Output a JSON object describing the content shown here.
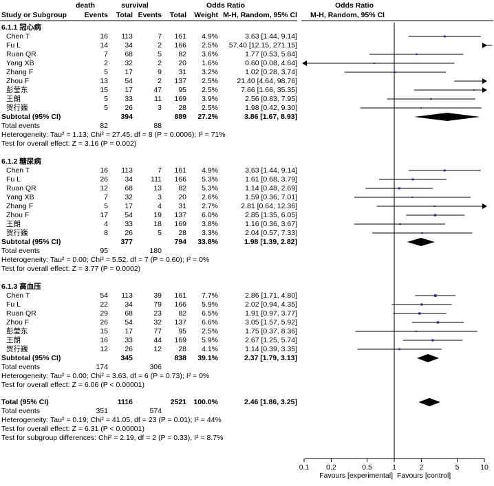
{
  "header": {
    "study_label": "Study or Subgroup",
    "group1": "death",
    "group2": "survival",
    "events": "Events",
    "total": "Total",
    "weight": "Weight",
    "or_title": "Odds Ratio",
    "or_method": "M-H, Random, 95% CI"
  },
  "chart_data": {
    "type": "forest",
    "x_scale": "log",
    "xlim": [
      0.1,
      10
    ],
    "x_ticks": [
      "0.1",
      "0.2",
      "0.5",
      "1",
      "2",
      "5",
      "10"
    ],
    "x_tick_values": [
      0.1,
      0.2,
      0.5,
      1,
      2,
      5,
      10
    ],
    "favours_left": "Favours [experimental]",
    "favours_right": "Favours [control]",
    "subgroups": [
      {
        "title": "6.1.1 冠心病",
        "studies": [
          {
            "name": "Chen T",
            "e1": "16",
            "t1": "113",
            "e2": "7",
            "t2": "161",
            "weight": "4.9%",
            "ci": "3.63 [1.44, 9.14]",
            "or": 3.63,
            "lo": 1.44,
            "hi": 9.14
          },
          {
            "name": "Fu L",
            "e1": "14",
            "t1": "34",
            "e2": "2",
            "t2": "166",
            "weight": "2.5%",
            "ci": "57.40 [12.15, 271.15]",
            "or": 57.4,
            "lo": 12.15,
            "hi": 271.15
          },
          {
            "name": "Ruan QR",
            "e1": "7",
            "t1": "68",
            "e2": "5",
            "t2": "82",
            "weight": "3.6%",
            "ci": "1.77 [0.53, 5.84]",
            "or": 1.77,
            "lo": 0.53,
            "hi": 5.84
          },
          {
            "name": "Yang XB",
            "e1": "2",
            "t1": "32",
            "e2": "2",
            "t2": "20",
            "weight": "1.6%",
            "ci": "0.60 [0.08, 4.64]",
            "or": 0.6,
            "lo": 0.08,
            "hi": 4.64
          },
          {
            "name": "Zhang F",
            "e1": "5",
            "t1": "17",
            "e2": "9",
            "t2": "31",
            "weight": "3.2%",
            "ci": "1.02 [0.28, 3.74]",
            "or": 1.02,
            "lo": 0.28,
            "hi": 3.74
          },
          {
            "name": "Zhou F",
            "e1": "13",
            "t1": "54",
            "e2": "2",
            "t2": "137",
            "weight": "2.5%",
            "ci": "21.40 [4.64, 98.76]",
            "or": 21.4,
            "lo": 4.64,
            "hi": 98.76
          },
          {
            "name": "彭莹东",
            "e1": "15",
            "t1": "17",
            "e2": "47",
            "t2": "95",
            "weight": "2.5%",
            "ci": "7.66 [1.66, 35.35]",
            "or": 7.66,
            "lo": 1.66,
            "hi": 35.35
          },
          {
            "name": "王朗",
            "e1": "5",
            "t1": "33",
            "e2": "11",
            "t2": "169",
            "weight": "3.9%",
            "ci": "2.56 [0.83, 7.95]",
            "or": 2.56,
            "lo": 0.83,
            "hi": 7.95
          },
          {
            "name": "贺行巍",
            "e1": "5",
            "t1": "26",
            "e2": "3",
            "t2": "28",
            "weight": "2.5%",
            "ci": "1.98 [0.42, 9.30]",
            "or": 1.98,
            "lo": 0.42,
            "hi": 9.3
          }
        ],
        "subtotal": {
          "label": "Subtotal (95% CI)",
          "t1": "394",
          "t2": "889",
          "weight": "27.2%",
          "ci": "3.86 [1.67, 8.93]",
          "or": 3.86,
          "lo": 1.67,
          "hi": 8.93
        },
        "total_events": {
          "label": "Total events",
          "e1": "82",
          "e2": "88"
        },
        "heterogeneity": "Heterogeneity: Tau² = 1.13; Chi² = 27.45, df = 8 (P = 0.0006); I² = 71%",
        "overall_effect": "Test for overall effect: Z = 3.16 (P = 0.002)"
      },
      {
        "title": "6.1.2 糖尿病",
        "studies": [
          {
            "name": "Chen T",
            "e1": "16",
            "t1": "113",
            "e2": "7",
            "t2": "161",
            "weight": "4.9%",
            "ci": "3.63 [1.44, 9.14]",
            "or": 3.63,
            "lo": 1.44,
            "hi": 9.14
          },
          {
            "name": "Fu L",
            "e1": "26",
            "t1": "34",
            "e2": "111",
            "t2": "166",
            "weight": "5.3%",
            "ci": "1.61 [0.68, 3.79]",
            "or": 1.61,
            "lo": 0.68,
            "hi": 3.79
          },
          {
            "name": "Ruan QR",
            "e1": "12",
            "t1": "68",
            "e2": "13",
            "t2": "82",
            "weight": "5.3%",
            "ci": "1.14 [0.48, 2.69]",
            "or": 1.14,
            "lo": 0.48,
            "hi": 2.69
          },
          {
            "name": "Yang XB",
            "e1": "7",
            "t1": "32",
            "e2": "3",
            "t2": "20",
            "weight": "2.6%",
            "ci": "1.59 [0.36, 7.01]",
            "or": 1.59,
            "lo": 0.36,
            "hi": 7.01
          },
          {
            "name": "Zhang F",
            "e1": "5",
            "t1": "17",
            "e2": "4",
            "t2": "31",
            "weight": "2.7%",
            "ci": "2.81 [0.64, 12.36]",
            "or": 2.81,
            "lo": 0.64,
            "hi": 12.36
          },
          {
            "name": "Zhou F",
            "e1": "17",
            "t1": "54",
            "e2": "19",
            "t2": "137",
            "weight": "6.0%",
            "ci": "2.85 [1.35, 6.05]",
            "or": 2.85,
            "lo": 1.35,
            "hi": 6.05
          },
          {
            "name": "王朗",
            "e1": "4",
            "t1": "33",
            "e2": "18",
            "t2": "169",
            "weight": "3.8%",
            "ci": "1.16 [0.36, 3.67]",
            "or": 1.16,
            "lo": 0.36,
            "hi": 3.67
          },
          {
            "name": "贺行巍",
            "e1": "8",
            "t1": "26",
            "e2": "5",
            "t2": "28",
            "weight": "3.3%",
            "ci": "2.04 [0.57, 7.33]",
            "or": 2.04,
            "lo": 0.57,
            "hi": 7.33
          }
        ],
        "subtotal": {
          "label": "Subtotal (95% CI)",
          "t1": "377",
          "t2": "794",
          "weight": "33.8%",
          "ci": "1.98 [1.39, 2.82]",
          "or": 1.98,
          "lo": 1.39,
          "hi": 2.82
        },
        "total_events": {
          "label": "Total events",
          "e1": "95",
          "e2": "180"
        },
        "heterogeneity": "Heterogeneity: Tau² = 0.00; Chi² = 5.52, df = 7 (P = 0.60); I² = 0%",
        "overall_effect": "Test for overall effect: Z = 3.77 (P = 0.0002)"
      },
      {
        "title": "6.1.3 高血压",
        "studies": [
          {
            "name": "Chen T",
            "e1": "54",
            "t1": "113",
            "e2": "39",
            "t2": "161",
            "weight": "7.7%",
            "ci": "2.86 [1.71, 4.80]",
            "or": 2.86,
            "lo": 1.71,
            "hi": 4.8
          },
          {
            "name": "Fu L",
            "e1": "22",
            "t1": "34",
            "e2": "79",
            "t2": "166",
            "weight": "5.9%",
            "ci": "2.02 [0.94, 4.35]",
            "or": 2.02,
            "lo": 0.94,
            "hi": 4.35
          },
          {
            "name": "Ruan QR",
            "e1": "29",
            "t1": "68",
            "e2": "23",
            "t2": "82",
            "weight": "6.5%",
            "ci": "1.91 [0.97, 3.77]",
            "or": 1.91,
            "lo": 0.97,
            "hi": 3.77
          },
          {
            "name": "Zhou F",
            "e1": "26",
            "t1": "54",
            "e2": "32",
            "t2": "137",
            "weight": "6.6%",
            "ci": "3.05 [1.57, 5.92]",
            "or": 3.05,
            "lo": 1.57,
            "hi": 5.92
          },
          {
            "name": "彭莹东",
            "e1": "15",
            "t1": "17",
            "e2": "77",
            "t2": "95",
            "weight": "2.5%",
            "ci": "1.75 [0.37, 8.36]",
            "or": 1.75,
            "lo": 0.37,
            "hi": 8.36
          },
          {
            "name": "王朗",
            "e1": "16",
            "t1": "33",
            "e2": "44",
            "t2": "169",
            "weight": "5.9%",
            "ci": "2.67 [1.25, 5.74]",
            "or": 2.67,
            "lo": 1.25,
            "hi": 5.74
          },
          {
            "name": "贺行巍",
            "e1": "12",
            "t1": "26",
            "e2": "12",
            "t2": "28",
            "weight": "4.1%",
            "ci": "1.14 [0.39, 3.35]",
            "or": 1.14,
            "lo": 0.39,
            "hi": 3.35
          }
        ],
        "subtotal": {
          "label": "Subtotal (95% CI)",
          "t1": "345",
          "t2": "838",
          "weight": "39.1%",
          "ci": "2.37 [1.79, 3.13]",
          "or": 2.37,
          "lo": 1.79,
          "hi": 3.13
        },
        "total_events": {
          "label": "Total events",
          "e1": "174",
          "e2": "306"
        },
        "heterogeneity": "Heterogeneity: Tau² = 0.00; Chi² = 3.63, df = 6 (P = 0.73); I² = 0%",
        "overall_effect": "Test for overall effect: Z = 6.06 (P < 0.00001)"
      }
    ],
    "overall": {
      "total": {
        "label": "Total (95% CI)",
        "t1": "1116",
        "t2": "2521",
        "weight": "100.0%",
        "ci": "2.46 [1.86, 3.25]",
        "or": 2.46,
        "lo": 1.86,
        "hi": 3.25
      },
      "total_events": {
        "label": "Total events",
        "e1": "351",
        "e2": "574"
      },
      "heterogeneity": "Heterogeneity: Tau² = 0.19; Chi² = 41.05, df = 23 (P = 0.01); I² = 44%",
      "overall_effect": "Test for overall effect: Z = 6.31 (P < 0.00001)",
      "subgroup_differences": "Test for subgroup differences: Chi² = 2.19, df = 2 (P = 0.33), I² = 8.7%"
    }
  }
}
